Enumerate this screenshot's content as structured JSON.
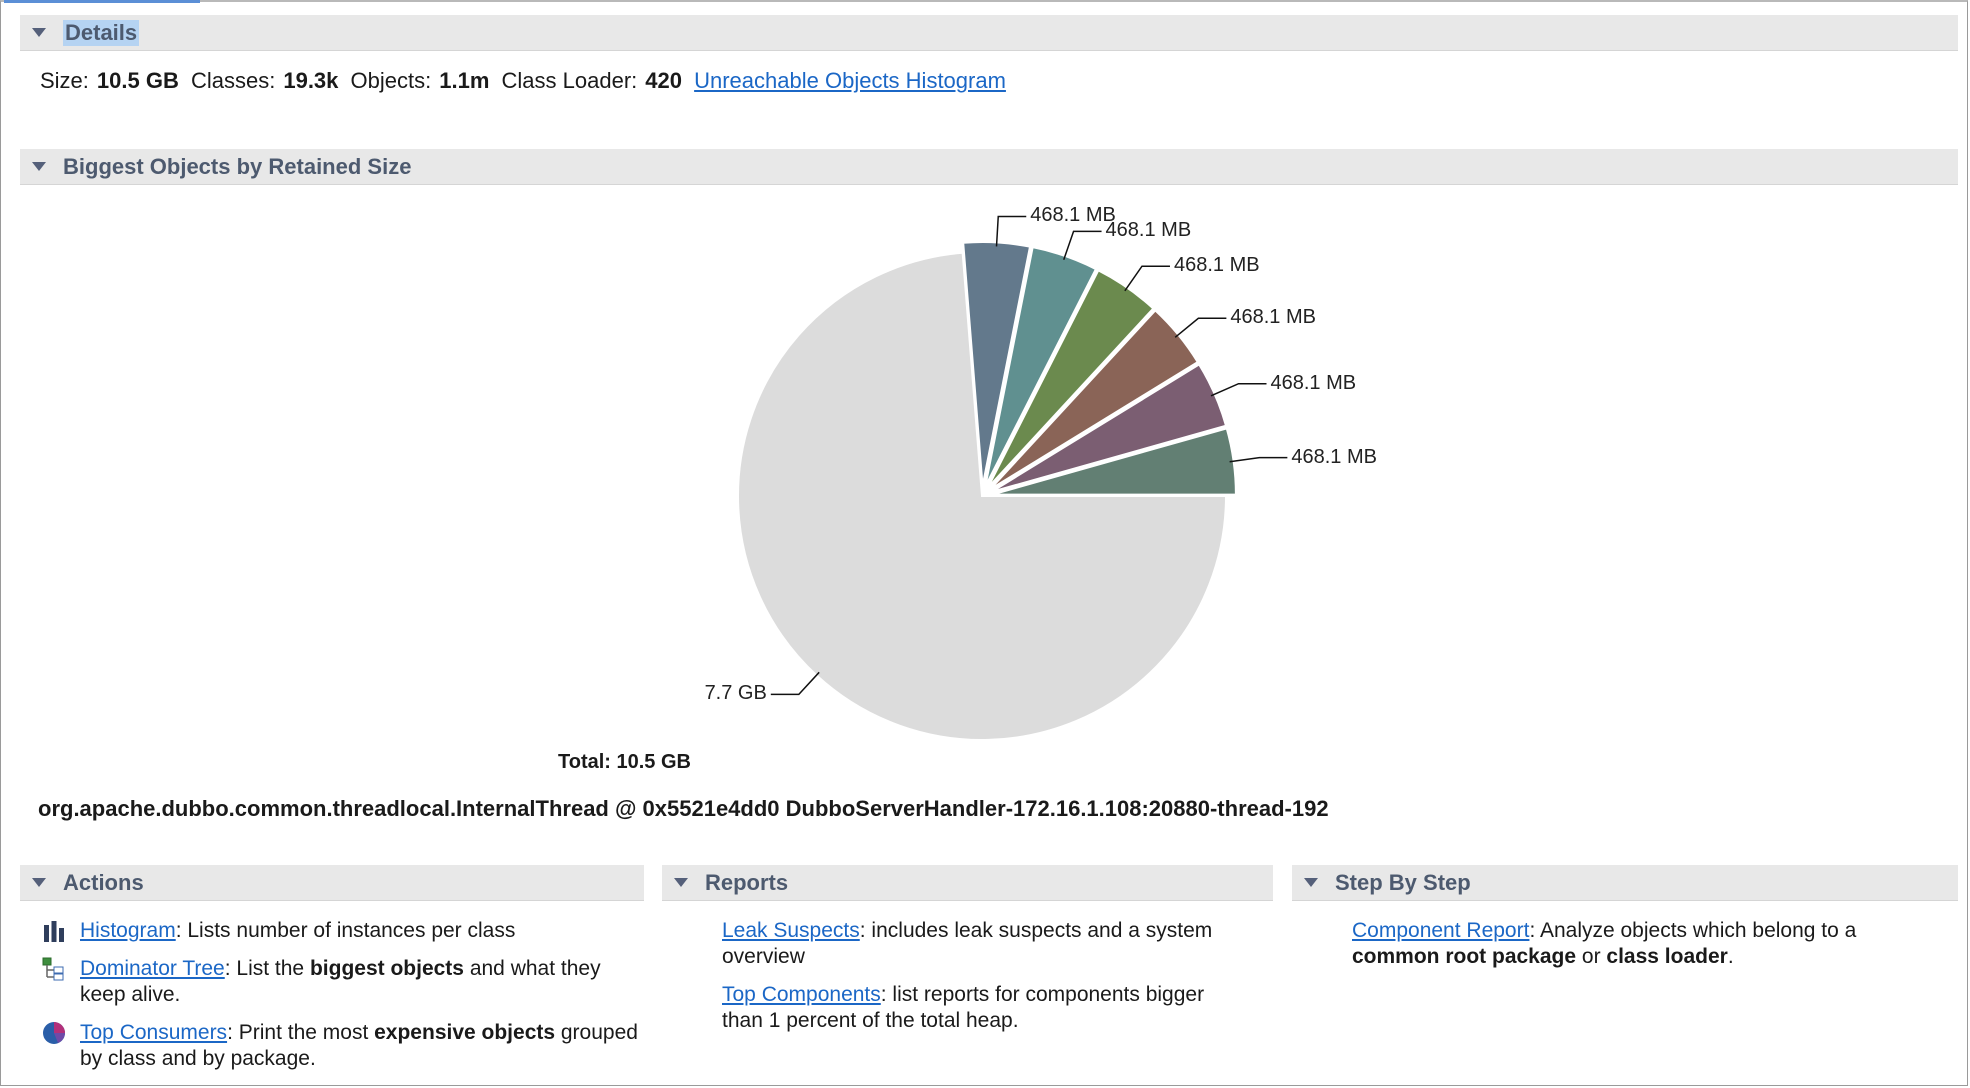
{
  "details": {
    "title": "Details",
    "size_label": "Size:",
    "size": "10.5 GB",
    "classes_label": "Classes:",
    "classes": "19.3k",
    "objects_label": "Objects:",
    "objects": "1.1m",
    "classloader_label": "Class Loader:",
    "classloader": "420",
    "histogram_link": "Unreachable Objects Histogram"
  },
  "biggest": {
    "title": "Biggest Objects by Retained Size"
  },
  "chart_data": {
    "type": "pie",
    "total_label": "Total: 10.5 GB",
    "slices": [
      {
        "label": "468.1 MB",
        "value": 468.1,
        "color": "#627f73"
      },
      {
        "label": "468.1 MB",
        "value": 468.1,
        "color": "#7b5e72"
      },
      {
        "label": "468.1 MB",
        "value": 468.1,
        "color": "#8a6457"
      },
      {
        "label": "468.1 MB",
        "value": 468.1,
        "color": "#6b8a4e"
      },
      {
        "label": "468.1 MB",
        "value": 468.1,
        "color": "#609090"
      },
      {
        "label": "468.1 MB",
        "value": 468.1,
        "color": "#63798c"
      },
      {
        "label": "7.7 GB",
        "value": 7884.8,
        "color": "#dcdcdc"
      }
    ]
  },
  "selected_object": "org.apache.dubbo.common.threadlocal.InternalThread @ 0x5521e4dd0 DubboServerHandler-172.16.1.108:20880-thread-192",
  "actions": {
    "title": "Actions",
    "histogram_link": "Histogram",
    "histogram_desc": ": Lists number of instances per class",
    "dominator_link": "Dominator Tree",
    "dominator_desc1": ": List the ",
    "dominator_bold": "biggest objects",
    "dominator_desc2": " and what they keep alive.",
    "consumers_link": "Top Consumers",
    "consumers_desc1": ": Print the most ",
    "consumers_bold": "expensive objects",
    "consumers_desc2": " grouped by class and by package."
  },
  "reports": {
    "title": "Reports",
    "leak_link": "Leak Suspects",
    "leak_desc": ": includes leak suspects and a system overview",
    "components_link": "Top Components",
    "components_desc": ": list reports for components bigger than 1 percent of the total heap."
  },
  "steps": {
    "title": "Step By Step",
    "component_link": "Component Report",
    "component_desc1": ": Analyze objects which belong to a ",
    "bold1": "common root package",
    "or": " or ",
    "bold2": "class loader",
    "end": "."
  }
}
